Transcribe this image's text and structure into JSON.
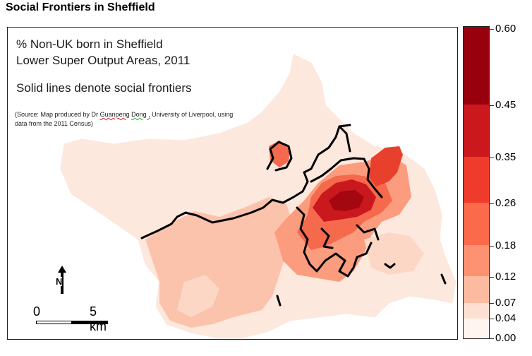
{
  "page_title": "Social Frontiers in Sheffield",
  "map": {
    "title_line1": "% Non-UK born in Sheffield",
    "title_line2": "Lower Super Output Areas, 2011",
    "subtitle": "Solid lines denote social frontiers",
    "source_prefix": "(Source: Map produced by Dr ",
    "source_author1": "Guanpeng",
    "source_space": " ",
    "source_author2": "Dong ,",
    "source_suffix": " University of Liverpool, using data from the 2011 Census)",
    "north_label": "N",
    "scale_start": "0",
    "scale_end": "5 km"
  },
  "legend": {
    "breaks": [
      "0.60",
      "0.45",
      "0.35",
      "0.26",
      "0.18",
      "0.12",
      "0.07",
      "0.04",
      "0.00"
    ],
    "colors": [
      "#99000d",
      "#cb181d",
      "#ef3b2c",
      "#fb6a4a",
      "#fc9272",
      "#fcbba1",
      "#fee0d2",
      "#fff5f0"
    ]
  },
  "colors": {
    "frontier_line": "#000000",
    "district_base": "#fde4d8"
  }
}
